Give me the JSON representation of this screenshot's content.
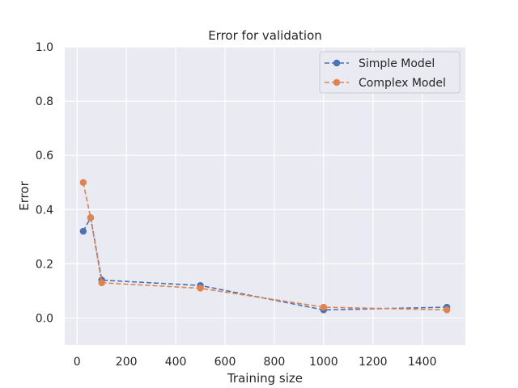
{
  "chart_data": {
    "type": "line",
    "title": "Error for validation",
    "xlabel": "Training size",
    "ylabel": "Error",
    "xlim": [
      -50,
      1575
    ],
    "ylim": [
      -0.1,
      1.0
    ],
    "xticks": [
      0,
      200,
      400,
      600,
      800,
      1000,
      1200,
      1400
    ],
    "yticks": [
      0.0,
      0.2,
      0.4,
      0.6,
      0.8,
      1.0
    ],
    "xtick_labels": [
      "0",
      "200",
      "400",
      "600",
      "800",
      "1000",
      "1200",
      "1400"
    ],
    "ytick_labels": [
      "0.0",
      "0.2",
      "0.4",
      "0.6",
      "0.8",
      "1.0"
    ],
    "grid": true,
    "legend_position": "top-right",
    "x": [
      25,
      55,
      100,
      500,
      1000,
      1500
    ],
    "series": [
      {
        "name": "Simple Model",
        "values": [
          0.32,
          0.37,
          0.14,
          0.12,
          0.03,
          0.04
        ],
        "color": "#4c72b0",
        "style": "dashed",
        "marker": "circle"
      },
      {
        "name": "Complex Model",
        "values": [
          0.5,
          0.37,
          0.13,
          0.11,
          0.04,
          0.03
        ],
        "color": "#dd8452",
        "style": "dashed",
        "marker": "circle"
      }
    ]
  }
}
